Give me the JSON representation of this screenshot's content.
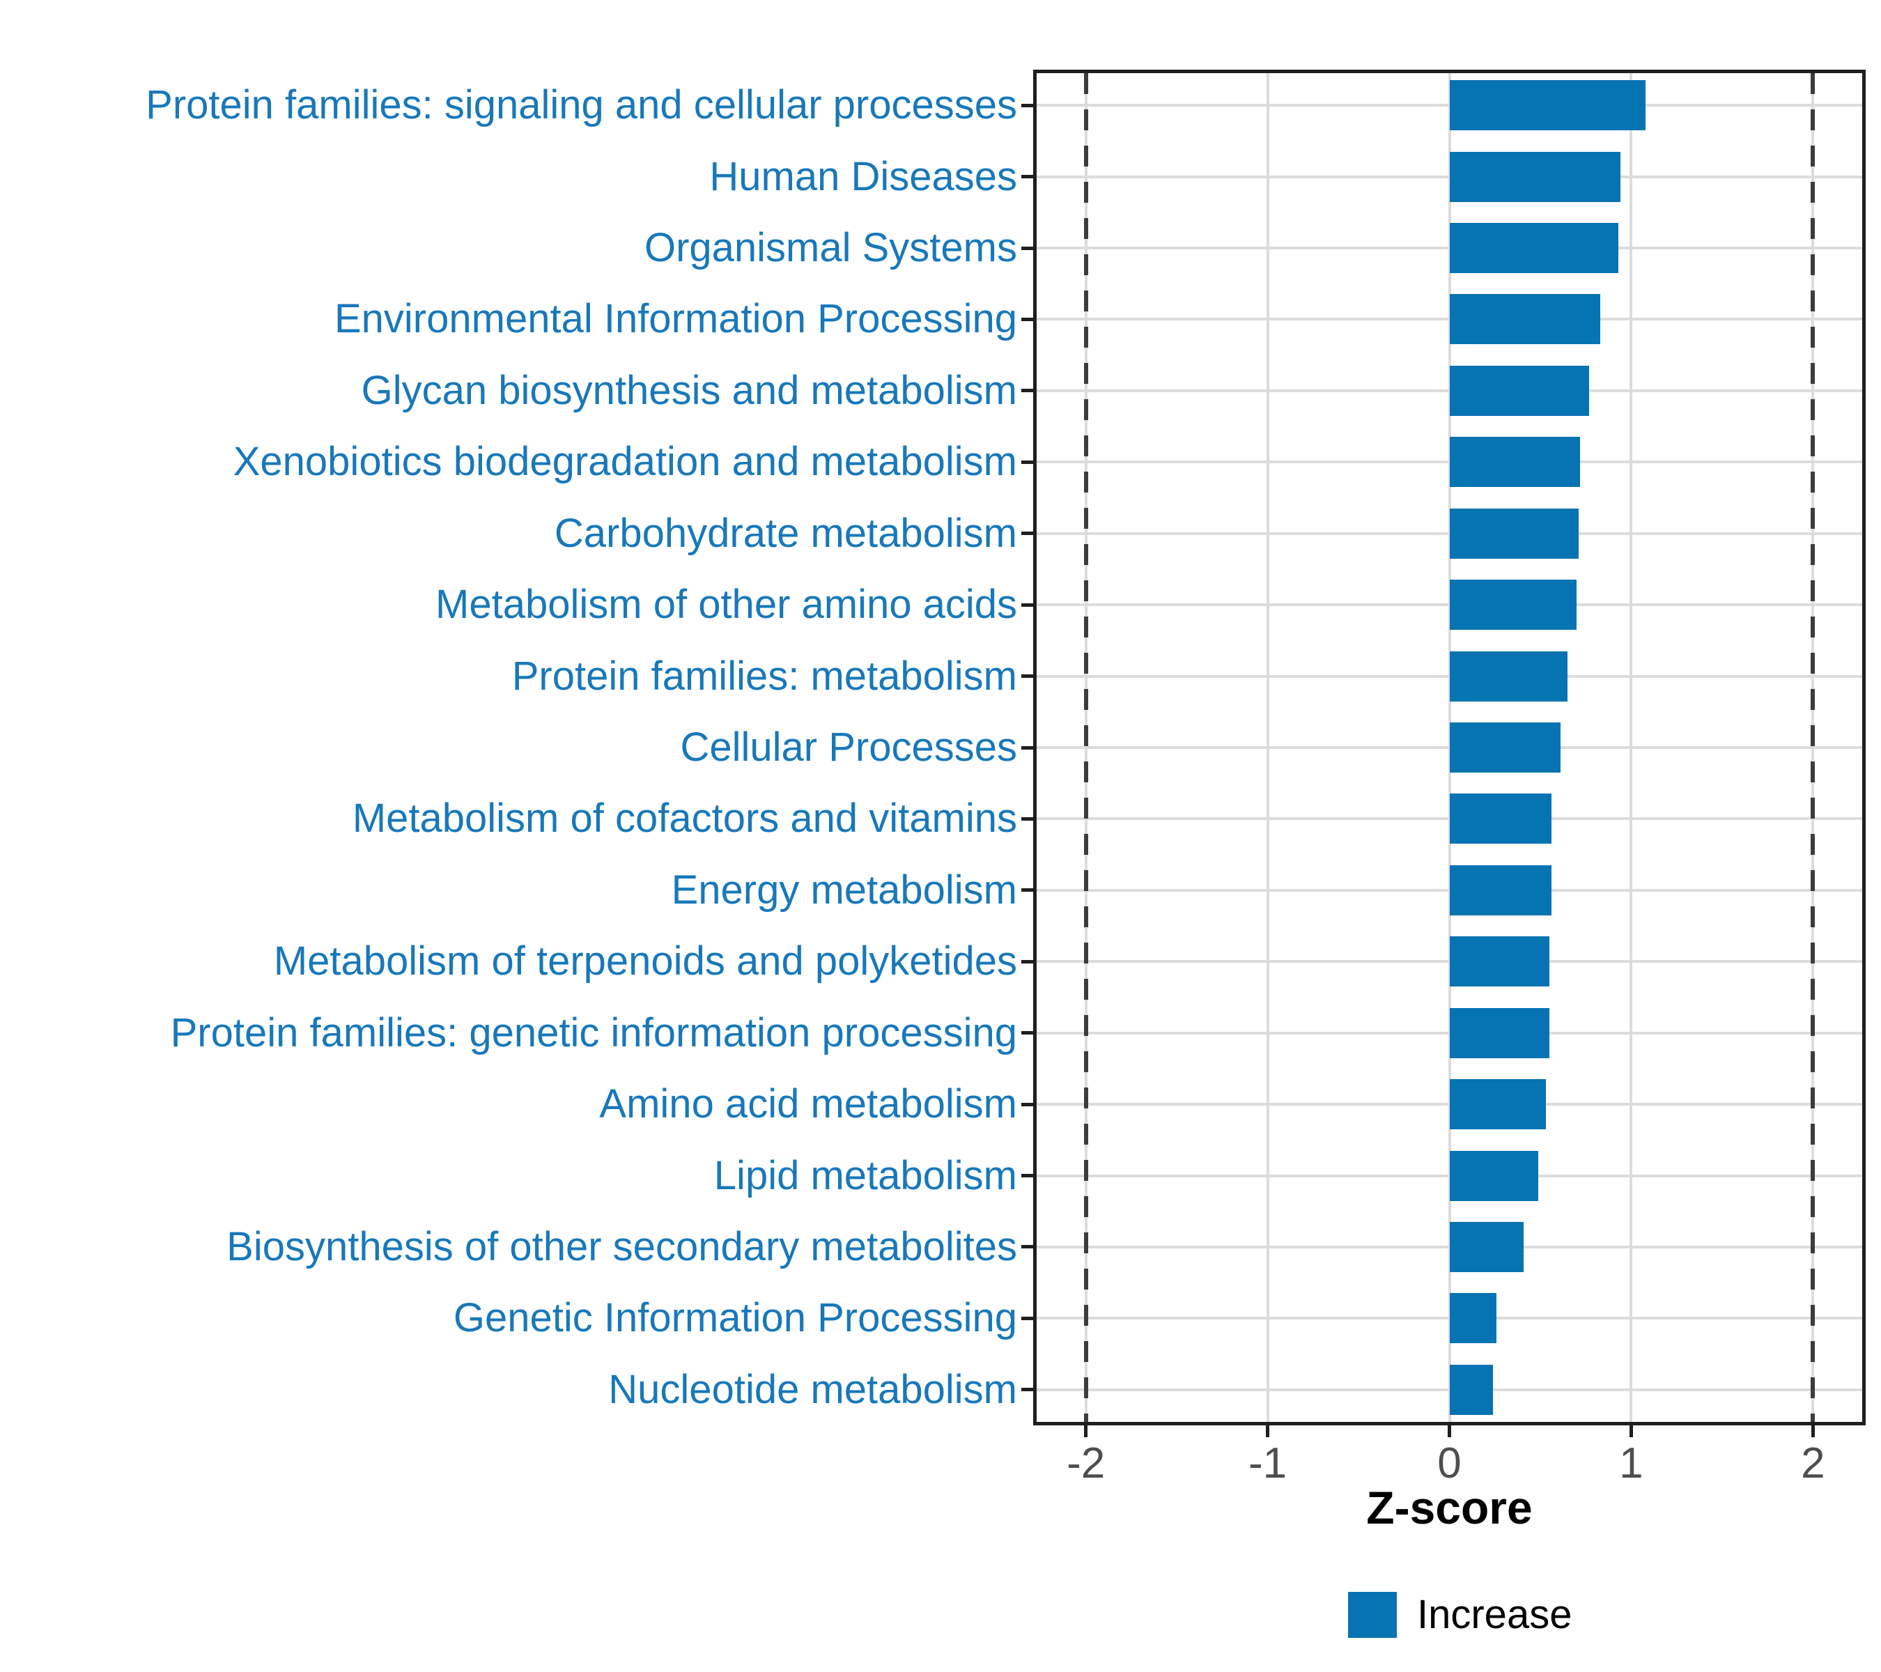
{
  "chart_data": {
    "type": "bar",
    "orientation": "horizontal",
    "xlabel": "Z-score",
    "categories": [
      "Protein families: signaling and cellular processes",
      "Human Diseases",
      "Organismal Systems",
      "Environmental Information Processing",
      "Glycan biosynthesis and metabolism",
      "Xenobiotics biodegradation and metabolism",
      "Carbohydrate metabolism",
      "Metabolism of other amino acids",
      "Protein families: metabolism",
      "Cellular Processes",
      "Metabolism of cofactors and vitamins",
      "Energy metabolism",
      "Metabolism of terpenoids and polyketides",
      "Protein families: genetic information processing",
      "Amino acid metabolism",
      "Lipid metabolism",
      "Biosynthesis of other secondary metabolites",
      "Genetic Information Processing",
      "Nucleotide metabolism"
    ],
    "values": [
      1.08,
      0.94,
      0.93,
      0.83,
      0.77,
      0.72,
      0.71,
      0.7,
      0.65,
      0.61,
      0.56,
      0.56,
      0.55,
      0.55,
      0.53,
      0.49,
      0.41,
      0.26,
      0.24
    ],
    "xlim": [
      -2.29,
      2.29
    ],
    "x_ticks": [
      -2,
      -1,
      0,
      1,
      2
    ],
    "x_tick_labels": [
      "-2",
      "-1",
      "0",
      "1",
      "2"
    ],
    "gridlines_x": [
      -2,
      -1,
      0,
      1,
      2
    ],
    "dashed_reference_lines": [
      -2,
      2
    ],
    "grid": "on",
    "legend": {
      "position": "bottom",
      "items": [
        {
          "label": "Increase",
          "color": "#0673b2"
        }
      ]
    },
    "colors": {
      "bar": "#0673b2",
      "category_label": "#1878ba",
      "grid": "#dcdcdc",
      "dashed": "#3c3c3c",
      "axis": "#1f1f1f",
      "tick_label": "#4d4d4d"
    }
  }
}
